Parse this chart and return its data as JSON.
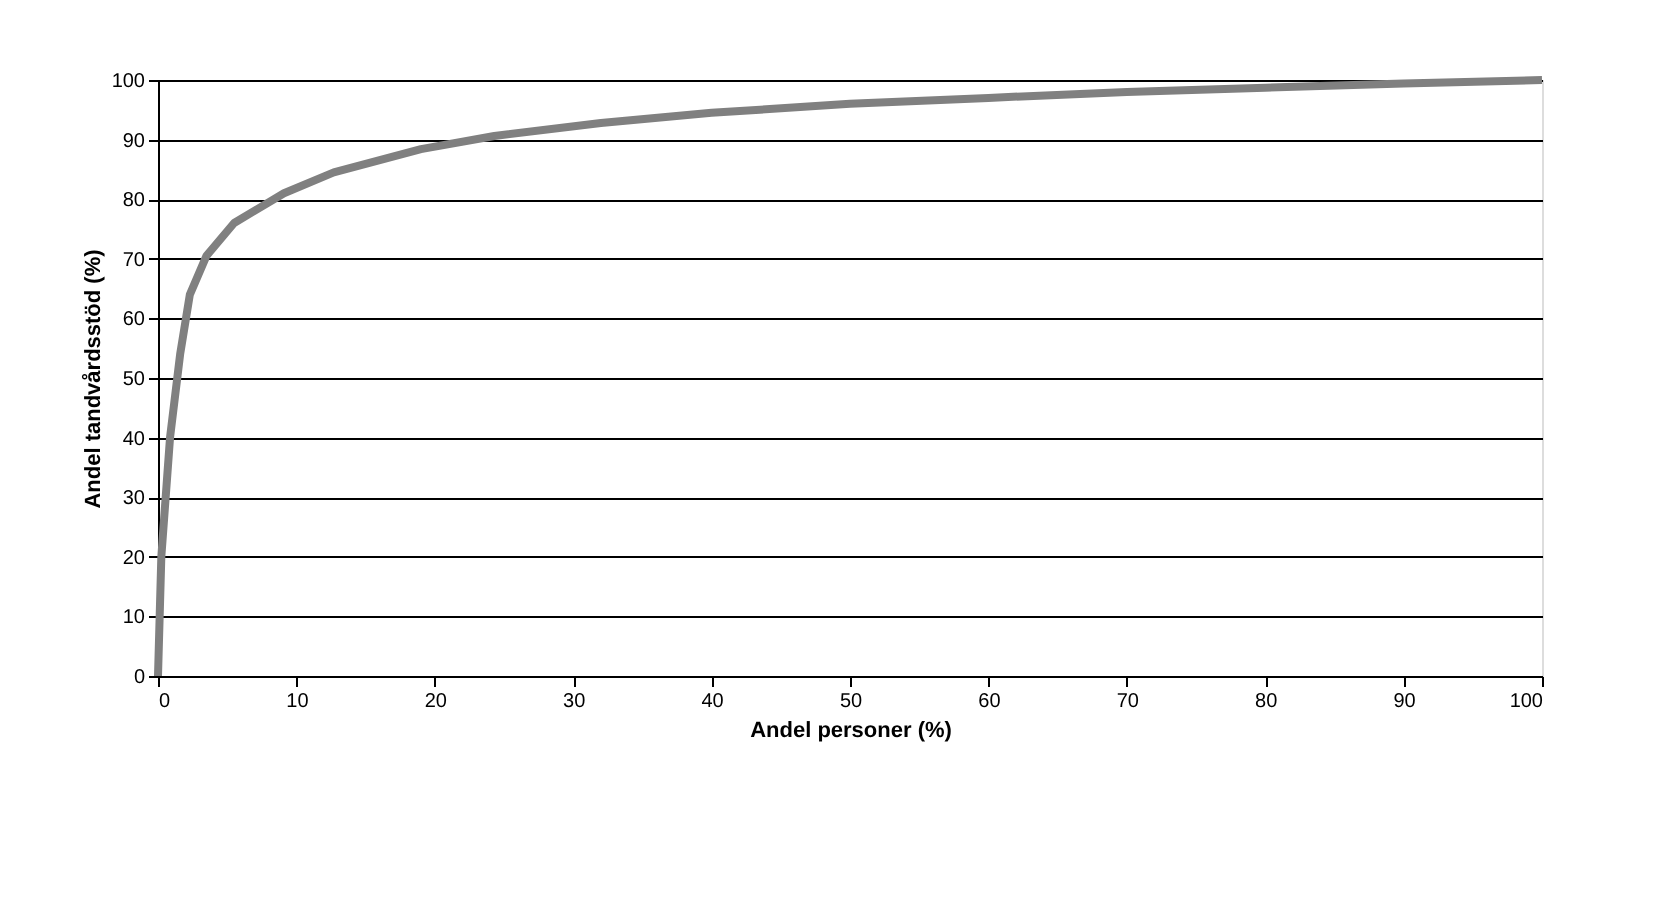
{
  "chart_data": {
    "type": "line",
    "xlabel": "Andel personer (%)",
    "ylabel": "Andel tandvårdsstöd (%)",
    "x": [
      0,
      0.24,
      0.87,
      1.6,
      2.3,
      3.5,
      5.5,
      9.1,
      12.7,
      19,
      24.3,
      32,
      40,
      50,
      60,
      70,
      80,
      90,
      100
    ],
    "series": [
      {
        "color": "#808080",
        "values": [
          0,
          20,
          40,
          54,
          64,
          70.5,
          76,
          81,
          84.5,
          88.4,
          90.6,
          92.8,
          94.5,
          96,
          97,
          98,
          98.7,
          99.4,
          100
        ]
      }
    ],
    "xlim": [
      0,
      100
    ],
    "xticks": [
      0,
      10,
      20,
      30,
      40,
      50,
      60,
      70,
      80,
      90,
      100
    ],
    "ylim": [
      0,
      100
    ],
    "yticks": [
      0,
      10,
      20,
      30,
      40,
      50,
      60,
      70,
      80,
      90,
      100
    ],
    "grid": "y",
    "marker": "none",
    "line_style": "solid"
  }
}
